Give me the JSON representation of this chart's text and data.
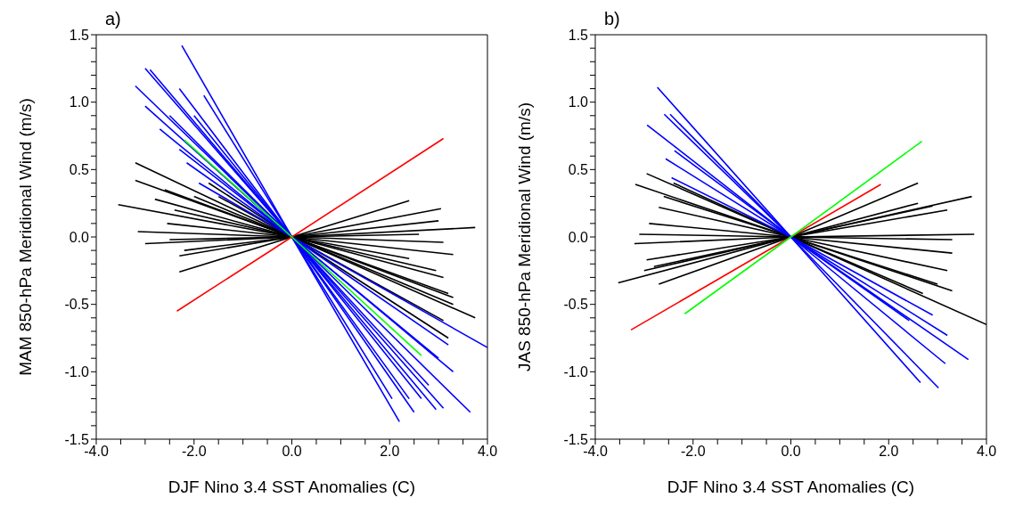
{
  "chart_data": [
    {
      "type": "line",
      "title": "a)",
      "xlabel": "DJF Nino 3.4 SST Anomalies (C)",
      "ylabel": "MAM 850-hPa Meridional Wind (m/s)",
      "xlim": [
        -4,
        4
      ],
      "ylim": [
        -1.5,
        1.5
      ],
      "xticks": [
        {
          "value": -4,
          "label": "-4.0"
        },
        {
          "value": -3.5,
          "label": null
        },
        {
          "value": -3,
          "label": null
        },
        {
          "value": -2.5,
          "label": null
        },
        {
          "value": -2,
          "label": "-2.0"
        },
        {
          "value": -1.5,
          "label": null
        },
        {
          "value": -1,
          "label": null
        },
        {
          "value": -0.5,
          "label": null
        },
        {
          "value": 0,
          "label": "0.0"
        },
        {
          "value": 0.5,
          "label": null
        },
        {
          "value": 1,
          "label": null
        },
        {
          "value": 1.5,
          "label": null
        },
        {
          "value": 2,
          "label": "2.0"
        },
        {
          "value": 2.5,
          "label": null
        },
        {
          "value": 3,
          "label": null
        },
        {
          "value": 3.5,
          "label": null
        },
        {
          "value": 4,
          "label": "4.0"
        }
      ],
      "yticks": [
        -1.5,
        {
          "value": -1.4,
          "label": null
        },
        {
          "value": -1.3,
          "label": null
        },
        {
          "value": -1.2,
          "label": null
        },
        {
          "value": -1.1,
          "label": null
        },
        {
          "value": -1,
          "label": "-1.0"
        },
        {
          "value": -0.9,
          "label": null
        },
        {
          "value": -0.8,
          "label": null
        },
        {
          "value": -0.7,
          "label": null
        },
        {
          "value": -0.6,
          "label": null
        },
        -0.5,
        {
          "value": -0.4,
          "label": null
        },
        {
          "value": -0.3,
          "label": null
        },
        {
          "value": -0.2,
          "label": null
        },
        {
          "value": -0.1,
          "label": null
        },
        {
          "value": 0,
          "label": "0.0"
        },
        {
          "value": 0.1,
          "label": null
        },
        {
          "value": 0.2,
          "label": null
        },
        {
          "value": 0.3,
          "label": null
        },
        {
          "value": 0.4,
          "label": null
        },
        0.5,
        {
          "value": 0.6,
          "label": null
        },
        {
          "value": 0.7,
          "label": null
        },
        {
          "value": 0.8,
          "label": null
        },
        {
          "value": 0.9,
          "label": null
        },
        {
          "value": 1,
          "label": "1.0"
        },
        {
          "value": 1.1,
          "label": null
        },
        {
          "value": 1.2,
          "label": null
        },
        {
          "value": 1.3,
          "label": null
        },
        {
          "value": 1.4,
          "label": null
        },
        1.5
      ],
      "line_style": "solid",
      "series": [
        {
          "color": "#000000",
          "x": [
            -3.55,
            0,
            2.4
          ],
          "values": [
            0.24,
            0,
            -0.16
          ]
        },
        {
          "color": "#000000",
          "x": [
            -3.2,
            0,
            3.75
          ],
          "values": [
            0.55,
            0,
            -0.6
          ]
        },
        {
          "color": "#000000",
          "x": [
            -3.2,
            0,
            3.2
          ],
          "values": [
            0.42,
            0,
            -0.42
          ]
        },
        {
          "color": "#000000",
          "x": [
            -3.15,
            0,
            3.1
          ],
          "values": [
            0.04,
            0,
            -0.04
          ]
        },
        {
          "color": "#000000",
          "x": [
            -3.0,
            0,
            3.75
          ],
          "values": [
            -0.05,
            0,
            0.07
          ]
        },
        {
          "color": "#000000",
          "x": [
            -2.3,
            0,
            2.4
          ],
          "values": [
            -0.26,
            0,
            0.27
          ]
        },
        {
          "color": "#000000",
          "x": [
            -2.3,
            0,
            3.05
          ],
          "values": [
            -0.14,
            0,
            0.21
          ]
        },
        {
          "color": "#000000",
          "x": [
            -2.55,
            0,
            3.3
          ],
          "values": [
            0.1,
            0,
            -0.13
          ]
        },
        {
          "color": "#000000",
          "x": [
            -2.6,
            0,
            3.3
          ],
          "values": [
            0.35,
            0,
            -0.45
          ]
        },
        {
          "color": "#000000",
          "x": [
            -2.8,
            0,
            3.1
          ],
          "values": [
            0.28,
            0,
            -0.3
          ]
        },
        {
          "color": "#000000",
          "x": [
            -2.4,
            0,
            2.95
          ],
          "values": [
            0.2,
            0,
            -0.25
          ]
        },
        {
          "color": "#000000",
          "x": [
            -1.7,
            0,
            3.2
          ],
          "values": [
            0.4,
            0,
            -0.75
          ]
        },
        {
          "color": "#000000",
          "x": [
            -2.0,
            0,
            3.3
          ],
          "values": [
            0.3,
            0,
            -0.5
          ]
        },
        {
          "color": "#000000",
          "x": [
            -2.5,
            0,
            2.6
          ],
          "values": [
            -0.02,
            0,
            0.02
          ]
        },
        {
          "color": "#000000",
          "x": [
            -2.2,
            0,
            3.0
          ],
          "values": [
            -0.1,
            0,
            0.12
          ]
        },
        {
          "color": "#000000",
          "x": [
            -1.5,
            0,
            3.1
          ],
          "values": [
            0.3,
            0,
            -0.62
          ]
        },
        {
          "color": "#0000ff",
          "x": [
            -2.25,
            0,
            2.2
          ],
          "values": [
            1.42,
            0,
            -1.37
          ]
        },
        {
          "color": "#0000ff",
          "x": [
            -3.2,
            0,
            3.65
          ],
          "values": [
            1.12,
            0,
            -1.3
          ]
        },
        {
          "color": "#0000ff",
          "x": [
            -3.0,
            0,
            3.1
          ],
          "values": [
            1.25,
            0,
            -1.27
          ]
        },
        {
          "color": "#0000ff",
          "x": [
            -2.9,
            0,
            2.95
          ],
          "values": [
            1.24,
            0,
            -1.28
          ]
        },
        {
          "color": "#0000ff",
          "x": [
            -3.0,
            0,
            2.65
          ],
          "values": [
            0.97,
            0,
            -1.2
          ]
        },
        {
          "color": "#0000ff",
          "x": [
            -2.7,
            0,
            3.3
          ],
          "values": [
            0.8,
            0,
            -1.0
          ]
        },
        {
          "color": "#0000ff",
          "x": [
            -2.5,
            0,
            2.8
          ],
          "values": [
            0.9,
            0,
            -1.1
          ]
        },
        {
          "color": "#0000ff",
          "x": [
            -2.3,
            0,
            3.0
          ],
          "values": [
            0.65,
            0,
            -0.9
          ]
        },
        {
          "color": "#0000ff",
          "x": [
            -2.15,
            0,
            3.2
          ],
          "values": [
            0.55,
            0,
            -0.8
          ]
        },
        {
          "color": "#0000ff",
          "x": [
            -2.0,
            0,
            2.4
          ],
          "values": [
            0.9,
            0,
            -1.2
          ]
        },
        {
          "color": "#0000ff",
          "x": [
            -2.3,
            0,
            2.5
          ],
          "values": [
            1.1,
            0,
            -1.3
          ]
        },
        {
          "color": "#0000ff",
          "x": [
            -1.8,
            0,
            2.05
          ],
          "values": [
            1.05,
            0,
            -1.2
          ]
        },
        {
          "color": "#0000ff",
          "x": [
            -1.9,
            0,
            4.0
          ],
          "values": [
            0.4,
            0,
            -0.82
          ]
        },
        {
          "color": "#ff0000",
          "x": [
            -2.35,
            0,
            3.1
          ],
          "values": [
            -0.55,
            0,
            0.73
          ]
        },
        {
          "color": "#00ff00",
          "x": [
            -2.2,
            0,
            2.65
          ],
          "values": [
            0.72,
            0,
            -0.88
          ]
        }
      ]
    },
    {
      "type": "line",
      "title": "b)",
      "xlabel": "DJF Nino 3.4 SST Anomalies (C)",
      "ylabel": "JAS 850-hPa Meridional Wind (m/s)",
      "xlim": [
        -4,
        4
      ],
      "ylim": [
        -1.5,
        1.5
      ],
      "xticks": [
        {
          "value": -4,
          "label": "-4.0"
        },
        {
          "value": -3.5,
          "label": null
        },
        {
          "value": -3,
          "label": null
        },
        {
          "value": -2.5,
          "label": null
        },
        {
          "value": -2,
          "label": "-2.0"
        },
        {
          "value": -1.5,
          "label": null
        },
        {
          "value": -1,
          "label": null
        },
        {
          "value": -0.5,
          "label": null
        },
        {
          "value": 0,
          "label": "0.0"
        },
        {
          "value": 0.5,
          "label": null
        },
        {
          "value": 1,
          "label": null
        },
        {
          "value": 1.5,
          "label": null
        },
        {
          "value": 2,
          "label": "2.0"
        },
        {
          "value": 2.5,
          "label": null
        },
        {
          "value": 3,
          "label": null
        },
        {
          "value": 3.5,
          "label": null
        },
        {
          "value": 4,
          "label": "4.0"
        }
      ],
      "yticks": [
        -1.5,
        {
          "value": -1.4,
          "label": null
        },
        {
          "value": -1.3,
          "label": null
        },
        {
          "value": -1.2,
          "label": null
        },
        {
          "value": -1.1,
          "label": null
        },
        {
          "value": -1,
          "label": "-1.0"
        },
        {
          "value": -0.9,
          "label": null
        },
        {
          "value": -0.8,
          "label": null
        },
        {
          "value": -0.7,
          "label": null
        },
        {
          "value": -0.6,
          "label": null
        },
        -0.5,
        {
          "value": -0.4,
          "label": null
        },
        {
          "value": -0.3,
          "label": null
        },
        {
          "value": -0.2,
          "label": null
        },
        {
          "value": -0.1,
          "label": null
        },
        {
          "value": 0,
          "label": "0.0"
        },
        {
          "value": 0.1,
          "label": null
        },
        {
          "value": 0.2,
          "label": null
        },
        {
          "value": 0.3,
          "label": null
        },
        {
          "value": 0.4,
          "label": null
        },
        0.5,
        {
          "value": 0.6,
          "label": null
        },
        {
          "value": 0.7,
          "label": null
        },
        {
          "value": 0.8,
          "label": null
        },
        {
          "value": 0.9,
          "label": null
        },
        {
          "value": 1,
          "label": "1.0"
        },
        {
          "value": 1.1,
          "label": null
        },
        {
          "value": 1.2,
          "label": null
        },
        {
          "value": 1.3,
          "label": null
        },
        {
          "value": 1.4,
          "label": null
        },
        1.5
      ],
      "line_style": "solid",
      "series": [
        {
          "color": "#000000",
          "x": [
            -3.53,
            0,
            2.6
          ],
          "values": [
            -0.34,
            0,
            0.25
          ]
        },
        {
          "color": "#000000",
          "x": [
            -3.18,
            0,
            3.3
          ],
          "values": [
            0.39,
            0,
            -0.4
          ]
        },
        {
          "color": "#000000",
          "x": [
            -2.4,
            0,
            4.0
          ],
          "values": [
            0.4,
            0,
            -0.65
          ]
        },
        {
          "color": "#000000",
          "x": [
            -3.2,
            0,
            3.75
          ],
          "values": [
            -0.05,
            0,
            0.02
          ]
        },
        {
          "color": "#000000",
          "x": [
            -3.0,
            0,
            3.7
          ],
          "values": [
            -0.25,
            0,
            0.3
          ]
        },
        {
          "color": "#000000",
          "x": [
            -2.95,
            0,
            3.2
          ],
          "values": [
            -0.17,
            0,
            0.2
          ]
        },
        {
          "color": "#000000",
          "x": [
            -2.9,
            0,
            3.3
          ],
          "values": [
            0.1,
            0,
            -0.12
          ]
        },
        {
          "color": "#000000",
          "x": [
            -2.7,
            0,
            2.6
          ],
          "values": [
            -0.35,
            0,
            0.4
          ]
        },
        {
          "color": "#000000",
          "x": [
            -2.7,
            0,
            3.2
          ],
          "values": [
            0.22,
            0,
            -0.25
          ]
        },
        {
          "color": "#000000",
          "x": [
            -2.95,
            0,
            2.7
          ],
          "values": [
            0.47,
            0,
            -0.42
          ]
        },
        {
          "color": "#000000",
          "x": [
            -3.1,
            0,
            3.3
          ],
          "values": [
            0.02,
            0,
            -0.02
          ]
        },
        {
          "color": "#000000",
          "x": [
            -2.6,
            0,
            3.0
          ],
          "values": [
            0.3,
            0,
            -0.35
          ]
        },
        {
          "color": "#000000",
          "x": [
            -2.8,
            0,
            2.9
          ],
          "values": [
            -0.22,
            0,
            0.23
          ]
        },
        {
          "color": "#0000ff",
          "x": [
            -2.73,
            0,
            3.02
          ],
          "values": [
            1.11,
            0,
            -1.12
          ]
        },
        {
          "color": "#0000ff",
          "x": [
            -2.94,
            0,
            3.63
          ],
          "values": [
            0.83,
            0,
            -0.91
          ]
        },
        {
          "color": "#0000ff",
          "x": [
            -2.59,
            0,
            2.65
          ],
          "values": [
            0.91,
            0,
            -1.08
          ]
        },
        {
          "color": "#0000ff",
          "x": [
            -2.47,
            0,
            3.16
          ],
          "values": [
            0.91,
            0,
            -0.94
          ]
        },
        {
          "color": "#0000ff",
          "x": [
            -2.56,
            0,
            3.2
          ],
          "values": [
            0.58,
            0,
            -0.73
          ]
        },
        {
          "color": "#0000ff",
          "x": [
            -2.44,
            0,
            2.9
          ],
          "values": [
            0.44,
            0,
            -0.58
          ]
        },
        {
          "color": "#0000ff",
          "x": [
            -2.38,
            0,
            2.42
          ],
          "values": [
            0.64,
            0,
            -0.62
          ]
        },
        {
          "color": "#ff0000",
          "x": [
            -3.27,
            0,
            1.84
          ],
          "values": [
            -0.69,
            0,
            0.39
          ]
        },
        {
          "color": "#00ff00",
          "x": [
            -2.17,
            0,
            2.68
          ],
          "values": [
            -0.57,
            0,
            0.71
          ]
        }
      ]
    }
  ]
}
